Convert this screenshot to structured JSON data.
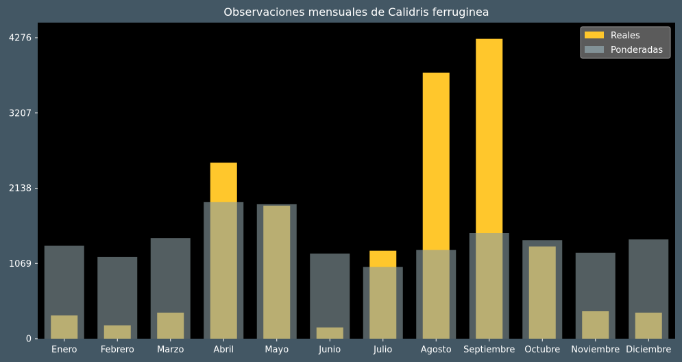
{
  "chart_data": {
    "type": "bar",
    "title": "Observaciones mensuales de Calidris ferruginea",
    "xlabel": "",
    "ylabel": "",
    "categories": [
      "Enero",
      "Febrero",
      "Marzo",
      "Abril",
      "Mayo",
      "Junio",
      "Julio",
      "Agosto",
      "Septiembre",
      "Octubre",
      "Noviembre",
      "Diciembre"
    ],
    "series": [
      {
        "name": "Reales",
        "color": "#FFC72C",
        "values": [
          330,
          190,
          370,
          2500,
          1890,
          160,
          1250,
          3780,
          4260,
          1310,
          390,
          370
        ]
      },
      {
        "name": "Ponderadas",
        "color": "#8A9CA2",
        "values": [
          1320,
          1160,
          1430,
          1940,
          1910,
          1210,
          1020,
          1260,
          1500,
          1400,
          1220,
          1410
        ]
      }
    ],
    "yticks": [
      0,
      1069,
      2138,
      3207,
      4276
    ],
    "ylim": [
      0,
      4276
    ],
    "grid": false,
    "legend_position": "top-right",
    "plot_background": "#000000",
    "figure_background": "#435764"
  }
}
